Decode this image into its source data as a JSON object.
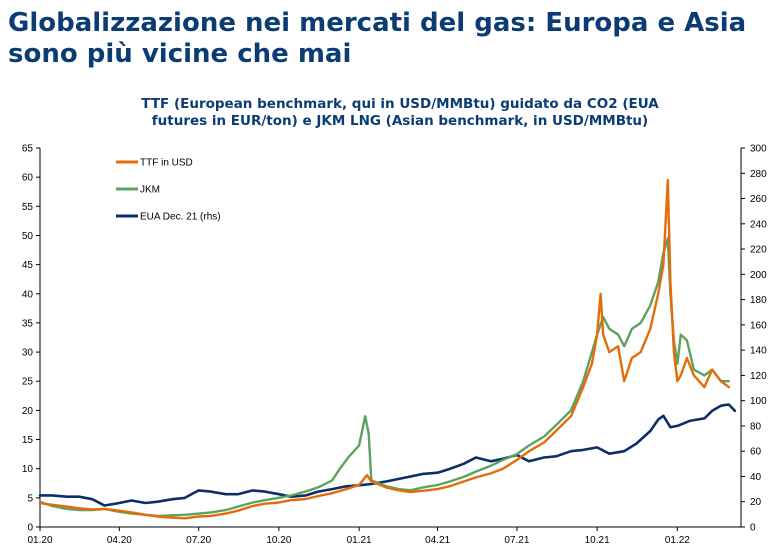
{
  "header": {
    "title_line1": "Globalizzazione nei mercati del gas: Europa e Asia",
    "title_line2": "sono più vicine che mai"
  },
  "chart_data": {
    "type": "line",
    "title_line1": "TTF (European benchmark, qui in USD/MMBtu) guidato da CO2 (EUA",
    "title_line2": "futures in EUR/ton) e JKM LNG (Asian benchmark, in USD/MMBtu)",
    "x_tick_labels": [
      "01.20",
      "04.20",
      "07.20",
      "10.20",
      "01.21",
      "04.21",
      "07.21",
      "10.21",
      "01.22"
    ],
    "x_range": [
      "2020-01-01",
      "2022-03-15"
    ],
    "y_left": {
      "min": 0,
      "max": 65,
      "ticks": [
        0,
        5,
        10,
        15,
        20,
        25,
        30,
        35,
        40,
        45,
        50,
        55,
        60,
        65
      ]
    },
    "y_right": {
      "min": 0,
      "max": 300,
      "ticks": [
        0,
        20,
        40,
        60,
        80,
        100,
        120,
        140,
        160,
        180,
        200,
        220,
        240,
        260,
        280,
        300
      ]
    },
    "grid": false,
    "legend_position": "top-left",
    "series": [
      {
        "name": "TTF in USD",
        "axis": "left",
        "color": "#e46c0a",
        "points": [
          [
            "2020-01-01",
            4.1
          ],
          [
            "2020-01-15",
            3.8
          ],
          [
            "2020-02-01",
            3.5
          ],
          [
            "2020-02-15",
            3.2
          ],
          [
            "2020-03-01",
            3.0
          ],
          [
            "2020-03-15",
            3.1
          ],
          [
            "2020-04-01",
            2.8
          ],
          [
            "2020-04-15",
            2.5
          ],
          [
            "2020-05-01",
            2.1
          ],
          [
            "2020-05-15",
            1.8
          ],
          [
            "2020-06-01",
            1.6
          ],
          [
            "2020-06-15",
            1.5
          ],
          [
            "2020-07-01",
            1.8
          ],
          [
            "2020-07-15",
            1.9
          ],
          [
            "2020-08-01",
            2.3
          ],
          [
            "2020-08-15",
            2.8
          ],
          [
            "2020-09-01",
            3.6
          ],
          [
            "2020-09-15",
            4.0
          ],
          [
            "2020-10-01",
            4.2
          ],
          [
            "2020-10-15",
            4.6
          ],
          [
            "2020-11-01",
            4.8
          ],
          [
            "2020-11-15",
            5.3
          ],
          [
            "2020-12-01",
            5.8
          ],
          [
            "2020-12-15",
            6.4
          ],
          [
            "2021-01-01",
            7.2
          ],
          [
            "2021-01-10",
            8.9
          ],
          [
            "2021-01-15",
            7.8
          ],
          [
            "2021-02-01",
            6.8
          ],
          [
            "2021-02-15",
            6.3
          ],
          [
            "2021-03-01",
            6.0
          ],
          [
            "2021-03-15",
            6.2
          ],
          [
            "2021-04-01",
            6.5
          ],
          [
            "2021-04-15",
            7.0
          ],
          [
            "2021-05-01",
            7.8
          ],
          [
            "2021-05-15",
            8.5
          ],
          [
            "2021-06-01",
            9.2
          ],
          [
            "2021-06-15",
            10.0
          ],
          [
            "2021-07-01",
            11.5
          ],
          [
            "2021-07-15",
            13.0
          ],
          [
            "2021-08-01",
            14.5
          ],
          [
            "2021-08-15",
            16.5
          ],
          [
            "2021-09-01",
            19.0
          ],
          [
            "2021-09-15",
            24.0
          ],
          [
            "2021-09-25",
            28.0
          ],
          [
            "2021-10-01",
            33.0
          ],
          [
            "2021-10-05",
            40.0
          ],
          [
            "2021-10-08",
            33.0
          ],
          [
            "2021-10-15",
            30.0
          ],
          [
            "2021-10-25",
            31.0
          ],
          [
            "2021-11-01",
            25.0
          ],
          [
            "2021-11-10",
            29.0
          ],
          [
            "2021-11-20",
            30.0
          ],
          [
            "2021-12-01",
            34.0
          ],
          [
            "2021-12-10",
            40.0
          ],
          [
            "2021-12-16",
            45.0
          ],
          [
            "2021-12-21",
            59.5
          ],
          [
            "2021-12-24",
            42.0
          ],
          [
            "2021-12-28",
            30.0
          ],
          [
            "2022-01-01",
            25.0
          ],
          [
            "2022-01-05",
            26.0
          ],
          [
            "2022-01-12",
            29.0
          ],
          [
            "2022-01-20",
            26.0
          ],
          [
            "2022-02-01",
            24.0
          ],
          [
            "2022-02-10",
            27.0
          ],
          [
            "2022-02-20",
            25.0
          ],
          [
            "2022-03-01",
            24.0
          ]
        ]
      },
      {
        "name": "JKM",
        "axis": "left",
        "color": "#5fa15f",
        "points": [
          [
            "2020-01-01",
            4.3
          ],
          [
            "2020-01-15",
            3.6
          ],
          [
            "2020-02-01",
            3.1
          ],
          [
            "2020-02-15",
            2.9
          ],
          [
            "2020-03-01",
            2.9
          ],
          [
            "2020-03-15",
            3.1
          ],
          [
            "2020-04-01",
            2.6
          ],
          [
            "2020-04-15",
            2.3
          ],
          [
            "2020-05-01",
            2.1
          ],
          [
            "2020-05-15",
            1.9
          ],
          [
            "2020-06-01",
            2.0
          ],
          [
            "2020-06-15",
            2.1
          ],
          [
            "2020-07-01",
            2.3
          ],
          [
            "2020-07-15",
            2.5
          ],
          [
            "2020-08-01",
            2.9
          ],
          [
            "2020-08-15",
            3.5
          ],
          [
            "2020-09-01",
            4.2
          ],
          [
            "2020-09-15",
            4.6
          ],
          [
            "2020-10-01",
            5.0
          ],
          [
            "2020-10-15",
            5.4
          ],
          [
            "2020-11-01",
            6.1
          ],
          [
            "2020-11-15",
            6.8
          ],
          [
            "2020-12-01",
            8.0
          ],
          [
            "2020-12-10",
            10.0
          ],
          [
            "2020-12-20",
            12.0
          ],
          [
            "2021-01-01",
            14.0
          ],
          [
            "2021-01-08",
            19.0
          ],
          [
            "2021-01-12",
            16.0
          ],
          [
            "2021-01-15",
            8.0
          ],
          [
            "2021-02-01",
            7.0
          ],
          [
            "2021-02-15",
            6.5
          ],
          [
            "2021-03-01",
            6.3
          ],
          [
            "2021-03-15",
            6.8
          ],
          [
            "2021-04-01",
            7.2
          ],
          [
            "2021-04-15",
            7.8
          ],
          [
            "2021-05-01",
            8.6
          ],
          [
            "2021-05-15",
            9.5
          ],
          [
            "2021-06-01",
            10.5
          ],
          [
            "2021-06-15",
            11.5
          ],
          [
            "2021-07-01",
            12.5
          ],
          [
            "2021-07-15",
            14.0
          ],
          [
            "2021-08-01",
            15.5
          ],
          [
            "2021-08-15",
            17.5
          ],
          [
            "2021-09-01",
            20.0
          ],
          [
            "2021-09-15",
            25.0
          ],
          [
            "2021-09-25",
            30.0
          ],
          [
            "2021-10-01",
            33.0
          ],
          [
            "2021-10-08",
            36.0
          ],
          [
            "2021-10-15",
            34.0
          ],
          [
            "2021-10-25",
            33.0
          ],
          [
            "2021-11-01",
            31.0
          ],
          [
            "2021-11-10",
            34.0
          ],
          [
            "2021-11-20",
            35.0
          ],
          [
            "2021-12-01",
            38.0
          ],
          [
            "2021-12-10",
            42.0
          ],
          [
            "2021-12-16",
            47.0
          ],
          [
            "2021-12-21",
            49.5
          ],
          [
            "2021-12-24",
            40.0
          ],
          [
            "2021-12-28",
            32.0
          ],
          [
            "2022-01-01",
            28.0
          ],
          [
            "2022-01-05",
            33.0
          ],
          [
            "2022-01-12",
            32.0
          ],
          [
            "2022-01-20",
            27.0
          ],
          [
            "2022-02-01",
            26.0
          ],
          [
            "2022-02-10",
            27.0
          ],
          [
            "2022-02-20",
            25.0
          ],
          [
            "2022-03-01",
            25.0
          ]
        ]
      },
      {
        "name": "EUA Dec. 21 (rhs)",
        "axis": "right",
        "color": "#0b2f66",
        "points": [
          [
            "2020-01-01",
            25
          ],
          [
            "2020-01-15",
            25
          ],
          [
            "2020-02-01",
            24
          ],
          [
            "2020-02-15",
            24
          ],
          [
            "2020-03-01",
            22
          ],
          [
            "2020-03-15",
            17
          ],
          [
            "2020-04-01",
            19
          ],
          [
            "2020-04-15",
            21
          ],
          [
            "2020-05-01",
            19
          ],
          [
            "2020-05-15",
            20
          ],
          [
            "2020-06-01",
            22
          ],
          [
            "2020-06-15",
            23
          ],
          [
            "2020-07-01",
            29
          ],
          [
            "2020-07-15",
            28
          ],
          [
            "2020-08-01",
            26
          ],
          [
            "2020-08-15",
            26
          ],
          [
            "2020-09-01",
            29
          ],
          [
            "2020-09-15",
            28
          ],
          [
            "2020-10-01",
            26
          ],
          [
            "2020-10-15",
            24
          ],
          [
            "2020-11-01",
            25
          ],
          [
            "2020-11-15",
            28
          ],
          [
            "2020-12-01",
            30
          ],
          [
            "2020-12-15",
            32
          ],
          [
            "2021-01-01",
            33
          ],
          [
            "2021-01-15",
            34
          ],
          [
            "2021-02-01",
            36
          ],
          [
            "2021-02-15",
            38
          ],
          [
            "2021-03-01",
            40
          ],
          [
            "2021-03-15",
            42
          ],
          [
            "2021-04-01",
            43
          ],
          [
            "2021-04-15",
            46
          ],
          [
            "2021-05-01",
            50
          ],
          [
            "2021-05-15",
            55
          ],
          [
            "2021-06-01",
            52
          ],
          [
            "2021-06-15",
            54
          ],
          [
            "2021-07-01",
            57
          ],
          [
            "2021-07-15",
            52
          ],
          [
            "2021-08-01",
            55
          ],
          [
            "2021-08-15",
            56
          ],
          [
            "2021-09-01",
            60
          ],
          [
            "2021-09-15",
            61
          ],
          [
            "2021-10-01",
            63
          ],
          [
            "2021-10-15",
            58
          ],
          [
            "2021-11-01",
            60
          ],
          [
            "2021-11-15",
            66
          ],
          [
            "2021-12-01",
            76
          ],
          [
            "2021-12-10",
            85
          ],
          [
            "2021-12-16",
            88
          ],
          [
            "2021-12-24",
            79
          ],
          [
            "2022-01-01",
            80
          ],
          [
            "2022-01-15",
            84
          ],
          [
            "2022-02-01",
            86
          ],
          [
            "2022-02-10",
            92
          ],
          [
            "2022-02-20",
            96
          ],
          [
            "2022-03-01",
            97
          ],
          [
            "2022-03-08",
            92
          ]
        ]
      }
    ]
  }
}
